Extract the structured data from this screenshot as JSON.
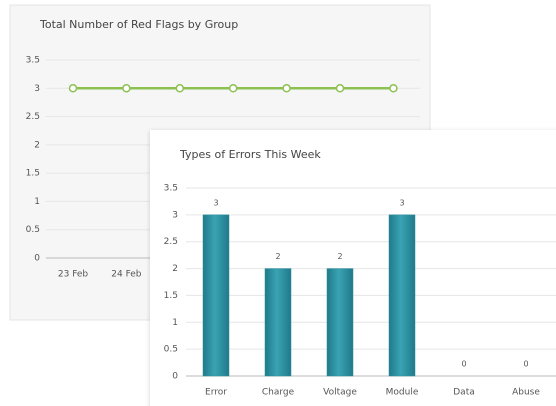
{
  "chart_data": [
    {
      "type": "line",
      "title": "Total Number of Red Flags by Group",
      "categories": [
        "23 Feb",
        "24 Feb",
        null,
        null,
        null,
        null,
        null
      ],
      "values": [
        3,
        3,
        3,
        3,
        3,
        3,
        3
      ],
      "color": "#8cc152",
      "ylim": [
        0,
        3.5
      ],
      "yticks": [
        0,
        0.5,
        1,
        1.5,
        2,
        2.5,
        3,
        3.5
      ],
      "grid": true
    },
    {
      "type": "bar",
      "title": "Types of Errors This Week",
      "categories": [
        "Error",
        "Charge",
        "Voltage",
        "Module",
        "Data",
        "Abuse"
      ],
      "values": [
        3,
        2,
        2,
        3,
        0,
        0
      ],
      "color": "#2b8e9e",
      "ylim": [
        0,
        3.5
      ],
      "yticks": [
        0,
        0.5,
        1,
        1.5,
        2,
        2.5,
        3,
        3.5
      ],
      "grid": true
    }
  ]
}
